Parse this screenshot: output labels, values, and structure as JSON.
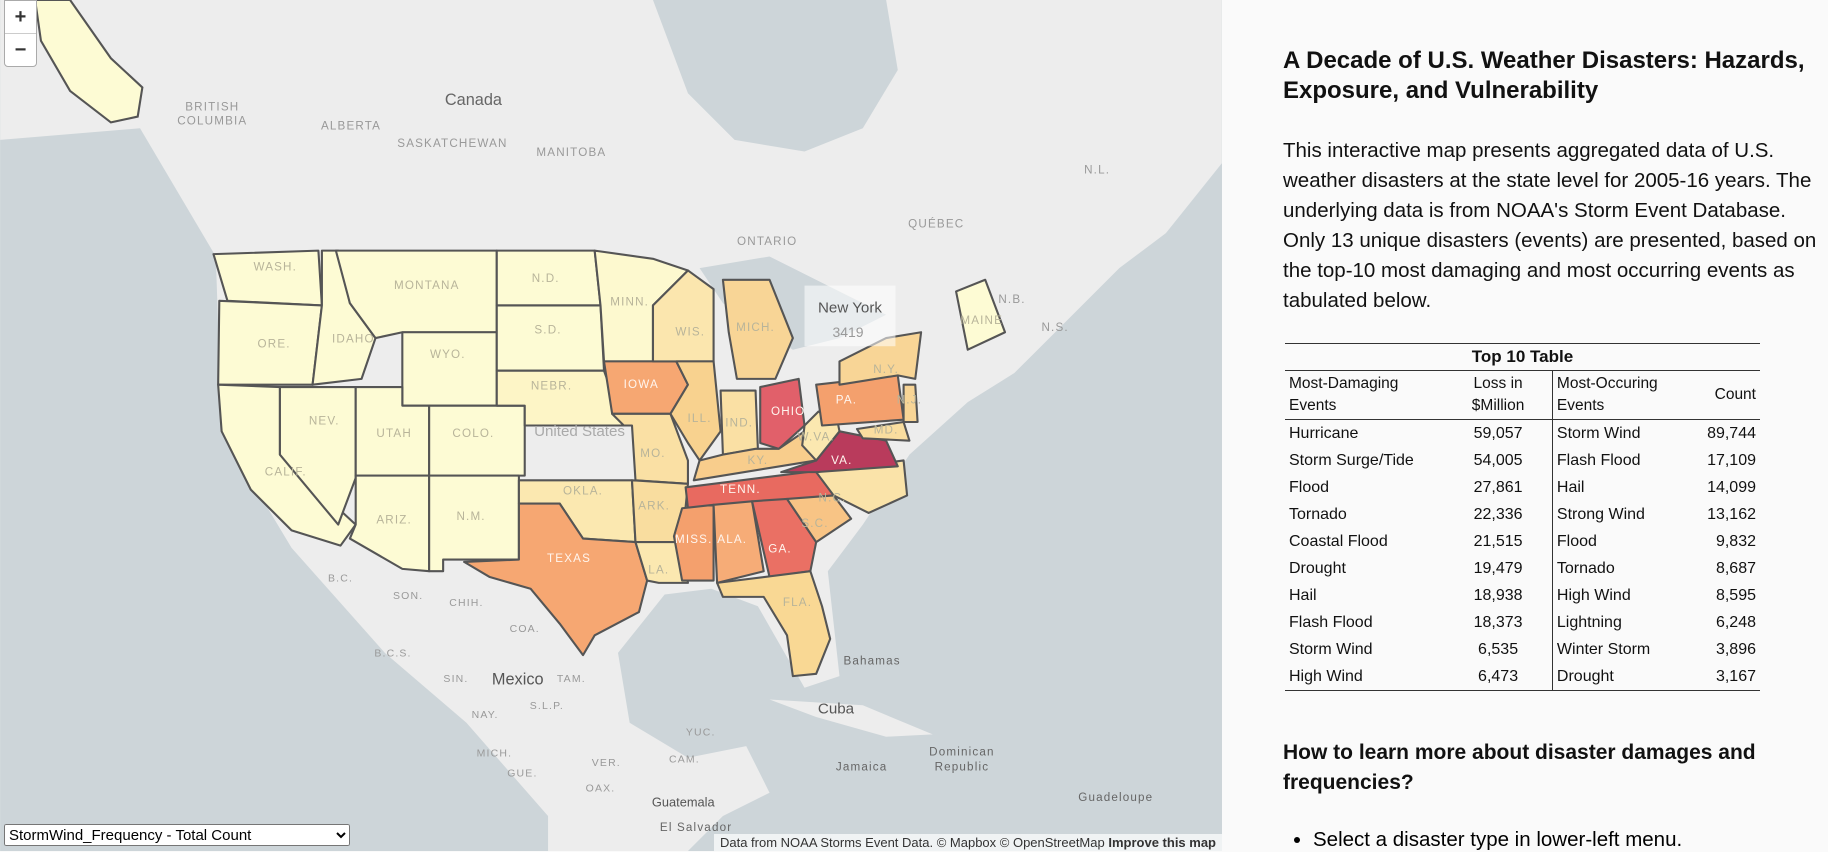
{
  "map": {
    "zoom_in": "+",
    "zoom_out": "−",
    "labels": [
      "Canada",
      "BRITISH",
      "COLUMBIA",
      "ALBERTA",
      "SASKATCHEWAN",
      "MANITOBA",
      "ONTARIO",
      "QUÉBEC",
      "N.L.",
      "N.B.",
      "N.S.",
      "United States",
      "Mexico",
      "Cuba",
      "Bahamas",
      "Jamaica",
      "Dominican",
      "Republic",
      "Guatemala",
      "El Salvador",
      "Guadeloupe",
      "B.C.",
      "SON.",
      "CHIH.",
      "COA.",
      "B.C.S.",
      "SIN.",
      "TAM.",
      "NAY.",
      "S.L.P.",
      "MICH.",
      "GUE.",
      "OAX.",
      "YUC.",
      "CAM.",
      "VER."
    ],
    "states": [
      {
        "label": "WASH.",
        "color": "#fdfbd4"
      },
      {
        "label": "ORE.",
        "color": "#fdfbd4"
      },
      {
        "label": "CALIF.",
        "color": "#fdfbd4"
      },
      {
        "label": "IDAHO",
        "color": "#fdfbd4"
      },
      {
        "label": "NEV.",
        "color": "#fdfbd4"
      },
      {
        "label": "MONTANA",
        "color": "#fdfbd4"
      },
      {
        "label": "WYO.",
        "color": "#fdfbd4"
      },
      {
        "label": "UTAH",
        "color": "#fdfbd4"
      },
      {
        "label": "COLO.",
        "color": "#fdfbd4"
      },
      {
        "label": "ARIZ.",
        "color": "#fdfbd4"
      },
      {
        "label": "N.M.",
        "color": "#fdfbd4"
      },
      {
        "label": "N.D.",
        "color": "#fdfbd4"
      },
      {
        "label": "S.D.",
        "color": "#fdfbd4"
      },
      {
        "label": "NEBR.",
        "color": "#fdf5c6"
      },
      {
        "label": "OKLA.",
        "color": "#fbe8b0"
      },
      {
        "label": "TEXAS",
        "color": "#f6a772"
      },
      {
        "label": "MINN.",
        "color": "#fdf9cf"
      },
      {
        "label": "IOWA",
        "color": "#f6a772"
      },
      {
        "label": "MO.",
        "color": "#fae0a4"
      },
      {
        "label": "ARK.",
        "color": "#f9dd9f"
      },
      {
        "label": "LA.",
        "color": "#fbe8b0"
      },
      {
        "label": "WIS.",
        "color": "#fbe6ae"
      },
      {
        "label": "MICH.",
        "color": "#f8d596"
      },
      {
        "label": "ILL.",
        "color": "#f8d28f"
      },
      {
        "label": "IND.",
        "color": "#fae0a4"
      },
      {
        "label": "OHIO",
        "color": "#e1606a"
      },
      {
        "label": "KY.",
        "color": "#f8cd8c"
      },
      {
        "label": "TENN.",
        "color": "#e86a60"
      },
      {
        "label": "MISS.",
        "color": "#f4a06d"
      },
      {
        "label": "ALA.",
        "color": "#f6ac77"
      },
      {
        "label": "GA.",
        "color": "#ea7064"
      },
      {
        "label": "FLA.",
        "color": "#f9d894"
      },
      {
        "label": "S.C.",
        "color": "#f8c485"
      },
      {
        "label": "N.C.",
        "color": "#fae3a9"
      },
      {
        "label": "VA.",
        "color": "#b93b5c"
      },
      {
        "label": "W.VA.",
        "color": "#fbe8b0"
      },
      {
        "label": "PA.",
        "color": "#f4a06d"
      },
      {
        "label": "N.Y.",
        "color": "#f8d596"
      },
      {
        "label": "MAINE",
        "color": "#fdfbd4"
      },
      {
        "label": "N.J.",
        "color": "#f8d596"
      },
      {
        "label": "MD.",
        "color": "#f9dd9f"
      }
    ],
    "tooltip": {
      "name": "New York",
      "value": "3419"
    },
    "select": "StormWind_Frequency - Total Count",
    "attribution": "Data from NOAA Storms Event Data. © Mapbox © OpenStreetMap",
    "improve": "Improve this map"
  },
  "panel": {
    "title": "A Decade of U.S. Weather Disasters: Hazards, Exposure, and Vulnerability",
    "intro": "This interactive map presents aggregated data of U.S. weather disasters at the state level for 2005-16 years. The underlying data is from NOAA's Storm Event Database. Only 13 unique disasters (events) are presented, based on the top-10 most damaging and most occurring events as tabulated below.",
    "table": {
      "caption": "Top 10 Table",
      "columns": [
        "Most-Damaging Events",
        "Loss in $Million",
        "Most-Occuring Events",
        "Count"
      ],
      "rows": [
        [
          "Hurricane",
          "59,057",
          "Storm Wind",
          "89,744"
        ],
        [
          "Storm Surge/Tide",
          "54,005",
          "Flash Flood",
          "17,109"
        ],
        [
          "Flood",
          "27,861",
          "Hail",
          "14,099"
        ],
        [
          "Tornado",
          "22,336",
          "Strong Wind",
          "13,162"
        ],
        [
          "Coastal Flood",
          "21,515",
          "Flood",
          "9,832"
        ],
        [
          "Drought",
          "19,479",
          "Tornado",
          "8,687"
        ],
        [
          "Hail",
          "18,938",
          "High Wind",
          "8,595"
        ],
        [
          "Flash Flood",
          "18,373",
          "Lightning",
          "6,248"
        ],
        [
          "Storm Wind",
          "6,535",
          "Winter Storm",
          "3,896"
        ],
        [
          "High Wind",
          "6,473",
          "Drought",
          "3,167"
        ]
      ]
    },
    "how_title": "How to learn more about disaster damages and frequencies?",
    "steps": [
      "Select a disaster type in lower-left menu."
    ]
  }
}
